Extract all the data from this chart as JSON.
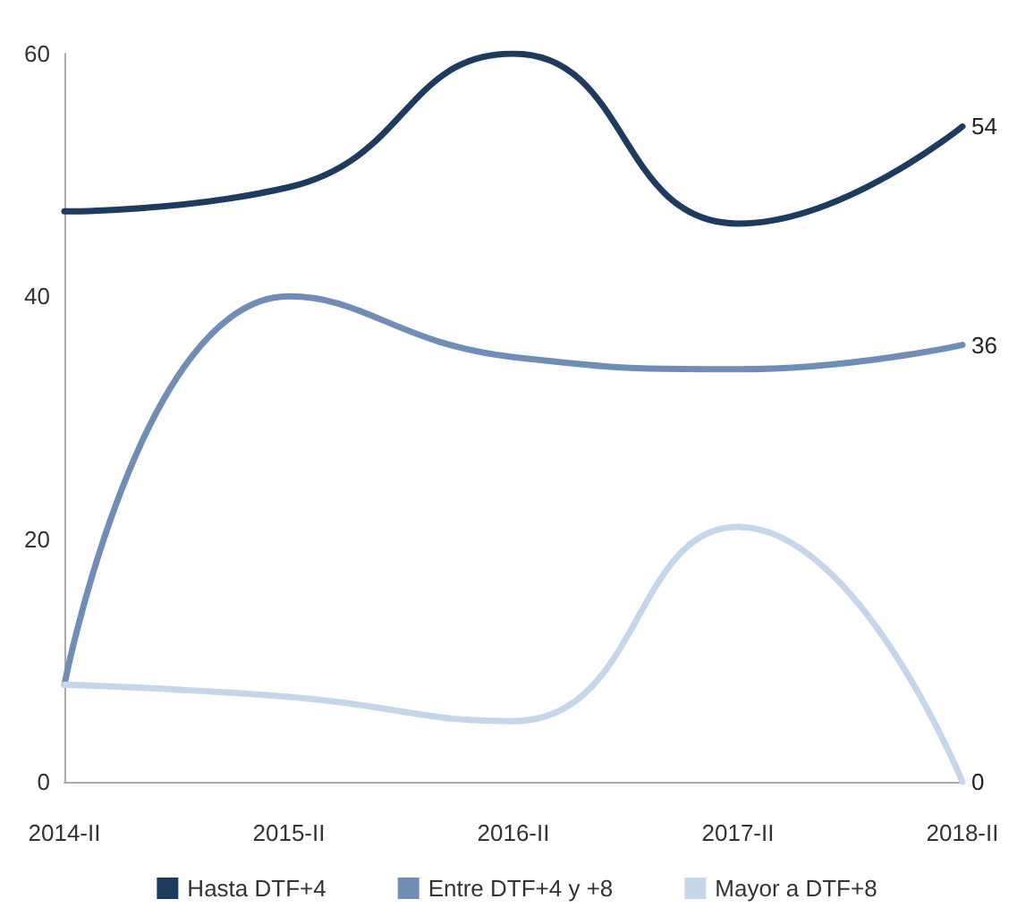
{
  "chart_data": {
    "type": "line",
    "categories": [
      "2014-II",
      "2015-II",
      "2016-II",
      "2017-II",
      "2018-II"
    ],
    "series": [
      {
        "name": "Hasta DTF+4",
        "color": "#1d3a5f",
        "values": [
          47,
          49,
          60,
          46,
          54
        ],
        "value_labels": [
          null,
          null,
          null,
          null,
          "54"
        ]
      },
      {
        "name": "Entre DTF+4 y +8",
        "color": "#6f8db5",
        "values": [
          8,
          40,
          35,
          34,
          36
        ],
        "value_labels": [
          null,
          null,
          null,
          null,
          "36"
        ]
      },
      {
        "name": "Mayor a DTF+8",
        "color": "#c6d6ea",
        "values": [
          8,
          7,
          5,
          21,
          0
        ],
        "value_labels": [
          null,
          null,
          null,
          null,
          "0"
        ]
      }
    ],
    "ylim": [
      0,
      60
    ],
    "yticks": [
      0,
      20,
      40,
      60
    ],
    "grid": false,
    "legend": "bottom",
    "marker": "none",
    "line_style": "solid"
  }
}
